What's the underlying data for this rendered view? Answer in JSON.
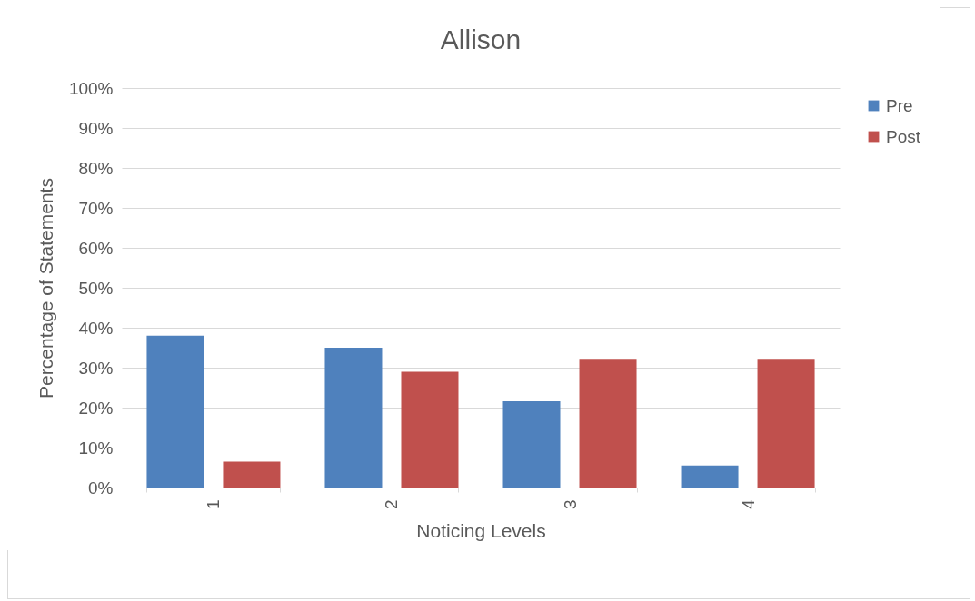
{
  "chart_data": {
    "type": "bar",
    "title": "Allison",
    "xlabel": "Noticing Levels",
    "ylabel": "Percentage of Statements",
    "categories": [
      "1",
      "2",
      "3",
      "4"
    ],
    "series": [
      {
        "name": "Pre",
        "color": "#4f81bd",
        "values": [
          38,
          35,
          21.6,
          5.5
        ]
      },
      {
        "name": "Post",
        "color": "#c0504d",
        "values": [
          6.5,
          29,
          32.2,
          32.2
        ]
      }
    ],
    "ylim": [
      0,
      100
    ],
    "yticks": [
      {
        "value": 0,
        "label": "0%"
      },
      {
        "value": 10,
        "label": "10%"
      },
      {
        "value": 20,
        "label": "20%"
      },
      {
        "value": 30,
        "label": "30%"
      },
      {
        "value": 40,
        "label": "40%"
      },
      {
        "value": 50,
        "label": "50%"
      },
      {
        "value": 60,
        "label": "60%"
      },
      {
        "value": 70,
        "label": "70%"
      },
      {
        "value": 80,
        "label": "80%"
      },
      {
        "value": 90,
        "label": "90%"
      },
      {
        "value": 100,
        "label": "100%"
      }
    ],
    "grid": "y",
    "legend": "right"
  }
}
